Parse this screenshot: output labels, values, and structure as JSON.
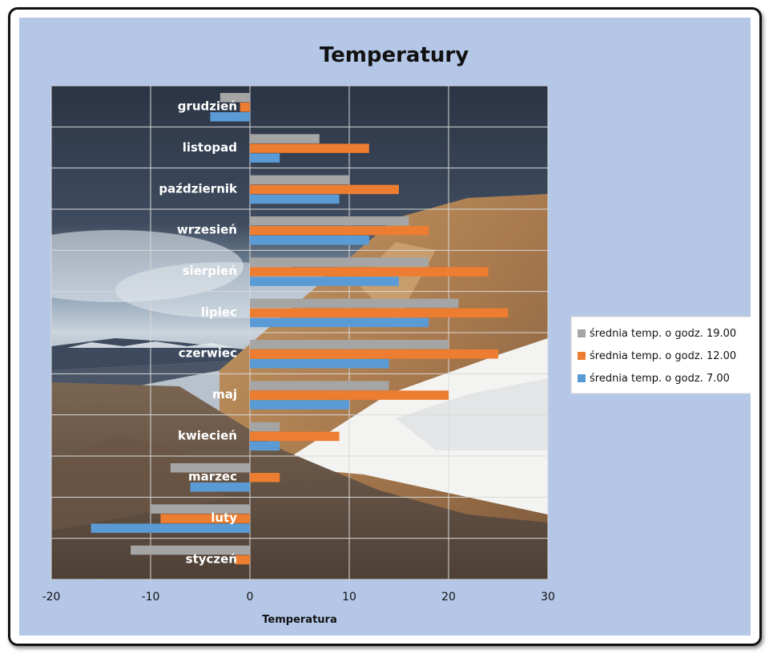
{
  "chart_data": {
    "type": "bar",
    "orientation": "horizontal",
    "title": "Temperatury",
    "xlabel": "Temperatura",
    "ylabel": "",
    "xlim": [
      -20,
      30
    ],
    "x_ticks": [
      -20,
      -10,
      0,
      10,
      20,
      30
    ],
    "x_tick_labels": [
      "-20",
      "-10",
      "0",
      "10",
      "20",
      "30"
    ],
    "grid": true,
    "legend_position": "right",
    "categories": [
      "styczeń",
      "luty",
      "marzec",
      "kwiecień",
      "maj",
      "czerwiec",
      "lipiec",
      "sierpień",
      "wrzesień",
      "październik",
      "listopad",
      "grudzień"
    ],
    "series": [
      {
        "name": "średnia temp. o godz. 7.00",
        "color": "#5b9bd5",
        "values": [
          0,
          -16,
          -6,
          3,
          10,
          14,
          18,
          15,
          12,
          9,
          3,
          -4
        ]
      },
      {
        "name": "średnia temp. o godz. 12.00",
        "color": "#ed7d31",
        "values": [
          -1.5,
          -9,
          3,
          9,
          20,
          25,
          26,
          24,
          18,
          15,
          12,
          -1
        ]
      },
      {
        "name": "średnia temp. o godz. 19.00",
        "color": "#a5a5a5",
        "values": [
          -12,
          -10,
          -8,
          3,
          14,
          20,
          21,
          18,
          16,
          10,
          7,
          -3
        ]
      }
    ],
    "legend_order": [
      "średnia temp. o godz. 19.00",
      "średnia temp. o godz. 12.00",
      "średnia temp. o godz. 7.00"
    ]
  }
}
